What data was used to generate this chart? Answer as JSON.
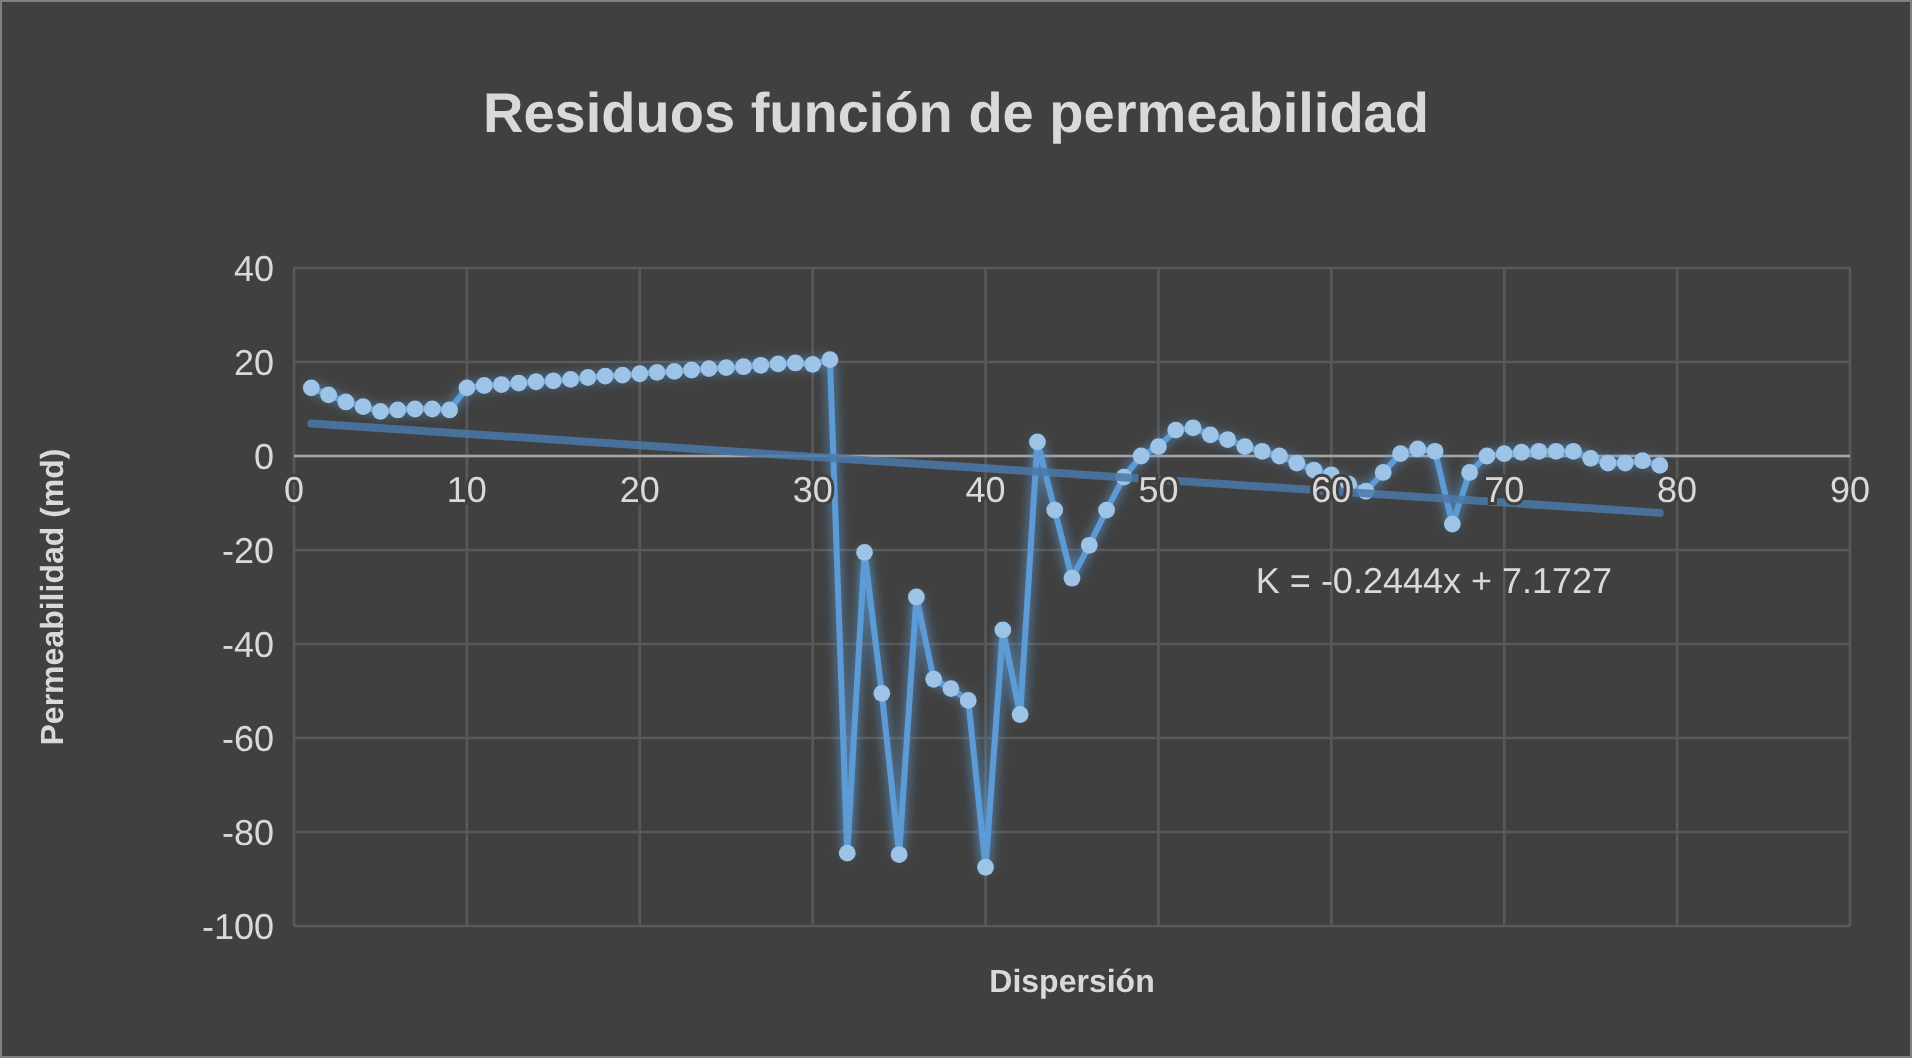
{
  "chart_data": {
    "type": "line",
    "title": "Residuos función de permeabilidad",
    "xlabel": "Dispersión",
    "ylabel": "Permeabilidad (md)",
    "xlim": [
      0,
      90
    ],
    "xticks": [
      0,
      10,
      20,
      30,
      40,
      50,
      60,
      70,
      80,
      90
    ],
    "ylim": [
      -100,
      40
    ],
    "yticks": [
      -100,
      -80,
      -60,
      -40,
      -20,
      0,
      20,
      40
    ],
    "grid": true,
    "marker": "circle",
    "series": [
      {
        "color": "#5b9bd5",
        "x": [
          1,
          2,
          3,
          4,
          5,
          6,
          7,
          8,
          9,
          10,
          11,
          12,
          13,
          14,
          15,
          16,
          17,
          18,
          19,
          20,
          21,
          22,
          23,
          24,
          25,
          26,
          27,
          28,
          29,
          30,
          31,
          32,
          33,
          34,
          35,
          36,
          37,
          38,
          39,
          40,
          41,
          42,
          43,
          44,
          45,
          46,
          47,
          48,
          49,
          50,
          51,
          52,
          53,
          54,
          55,
          56,
          57,
          58,
          59,
          60,
          61,
          62,
          63,
          64,
          65,
          66,
          67,
          68,
          69,
          70,
          71,
          72,
          73,
          74,
          75,
          76,
          77,
          78,
          79
        ],
        "values": [
          14.5,
          13,
          11.5,
          10.5,
          9.5,
          9.8,
          10,
          10,
          9.8,
          14.5,
          15,
          15.2,
          15.5,
          15.8,
          16,
          16.3,
          16.7,
          17,
          17.2,
          17.5,
          17.8,
          18,
          18.3,
          18.6,
          18.8,
          19,
          19.3,
          19.6,
          19.8,
          19.5,
          20.5,
          -84.5,
          -20.5,
          -50.5,
          -84.8,
          -30,
          -47.5,
          -49.5,
          -52,
          -87.5,
          -37,
          -55,
          3,
          -11.5,
          -26,
          -19,
          -11.5,
          -4.5,
          0,
          2,
          5.5,
          6,
          4.5,
          3.5,
          2,
          1,
          0,
          -1.5,
          -3,
          -4,
          -6,
          -7.5,
          -3.5,
          0.5,
          1.5,
          1,
          -14.5,
          -3.5,
          0,
          0.5,
          0.8,
          1,
          1,
          1,
          -0.5,
          -1.5,
          -1.5,
          -1,
          -2
        ]
      },
      {
        "color": "#4a79a8",
        "marker": "none",
        "x": [
          1,
          79
        ],
        "values": [
          6.9,
          -12.1
        ]
      }
    ],
    "annotations": [
      "K = -0.2444x + 7.1727"
    ]
  }
}
